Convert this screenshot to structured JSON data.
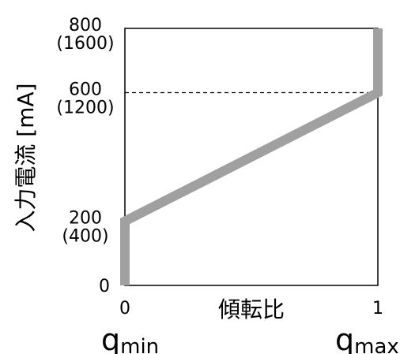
{
  "chart_data": {
    "type": "line",
    "title": "",
    "xlabel": "傾転比",
    "ylabel": "入力電流 [mA]",
    "xlim": [
      0,
      1
    ],
    "ylim": [
      0,
      800
    ],
    "x_ticks": [
      {
        "value": 0,
        "label": "0"
      },
      {
        "value": 1,
        "label": "1"
      }
    ],
    "y_ticks": [
      {
        "value": 0,
        "label": "0",
        "sublabel": ""
      },
      {
        "value": 200,
        "label": "200",
        "sublabel": "(400)"
      },
      {
        "value": 600,
        "label": "600",
        "sublabel": "(1200)"
      },
      {
        "value": 800,
        "label": "800",
        "sublabel": "(1600)"
      }
    ],
    "reference_line": {
      "y": 600,
      "style": "dashed"
    },
    "series": [
      {
        "color": "#a0a0a0",
        "points": [
          {
            "x": 0,
            "y": 0
          },
          {
            "x": 0,
            "y": 200
          },
          {
            "x": 1,
            "y": 600
          },
          {
            "x": 1,
            "y": 800
          }
        ]
      }
    ],
    "x_annotations": {
      "min": {
        "base": "q",
        "sub": "min"
      },
      "max": {
        "base": "q",
        "sub": "max"
      }
    },
    "grid": false,
    "legend": "none"
  }
}
